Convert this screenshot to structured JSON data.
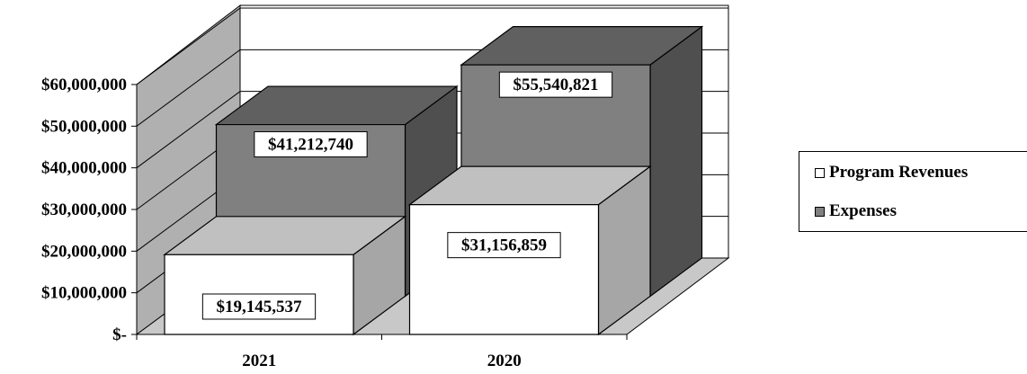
{
  "chart_data": {
    "type": "bar",
    "categories": [
      "2021",
      "2020"
    ],
    "series": [
      {
        "name": "Program Revenues",
        "values": [
          19145537,
          31156859
        ],
        "labels": [
          "$19,145,537",
          "$31,156,859"
        ]
      },
      {
        "name": "Expenses",
        "values": [
          41212740,
          55540821
        ],
        "labels": [
          "$41,212,740",
          "$55,540,821"
        ]
      }
    ],
    "y_tick_labels": [
      "$-",
      "$10,000,000",
      "$20,000,000",
      "$30,000,000",
      "$40,000,000",
      "$50,000,000",
      "$60,000,000"
    ],
    "ylim": [
      0,
      60000000
    ],
    "grid": true,
    "three_d": true,
    "legend_position": "right"
  },
  "colors": {
    "revenues_front": "#ffffff",
    "revenues_top": "#c0c0c0",
    "revenues_side": "#a6a6a6",
    "expenses_front": "#808080",
    "expenses_top": "#606060",
    "expenses_side": "#4f4f4f",
    "wall_left": "#b0b0b0",
    "floor": "#c8c8c8"
  }
}
